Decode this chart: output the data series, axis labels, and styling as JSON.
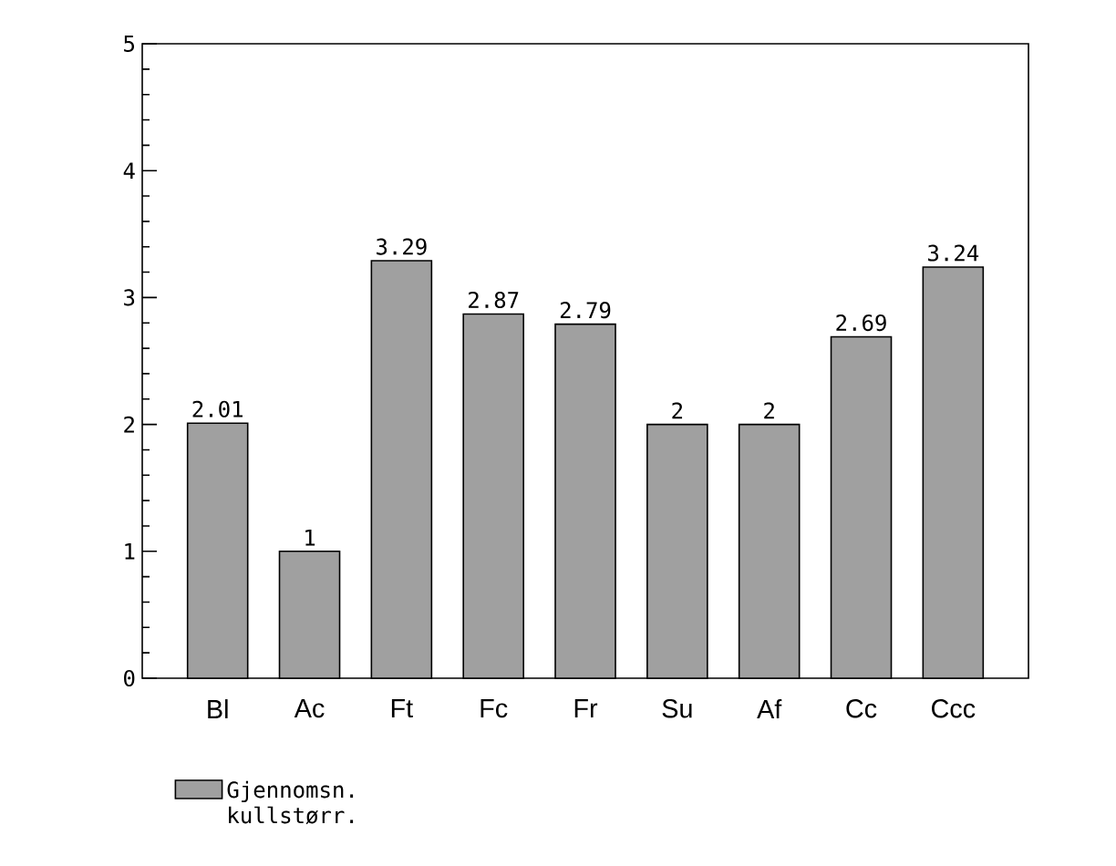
{
  "chart_data": {
    "type": "bar",
    "categories": [
      "Bl",
      "Ac",
      "Ft",
      "Fc",
      "Fr",
      "Su",
      "Af",
      "Cc",
      "Ccc"
    ],
    "series": [
      {
        "name": "Gjennomsn. kullstørr.",
        "color": "#a0a0a0",
        "values": [
          2.01,
          1,
          3.29,
          2.87,
          2.79,
          2,
          2,
          2.69,
          3.24
        ]
      }
    ],
    "ylim": [
      0,
      5
    ],
    "yticks": [
      0,
      1,
      2,
      3,
      4,
      5
    ],
    "data_labels": true,
    "legend": "bottom left",
    "grid": false
  }
}
